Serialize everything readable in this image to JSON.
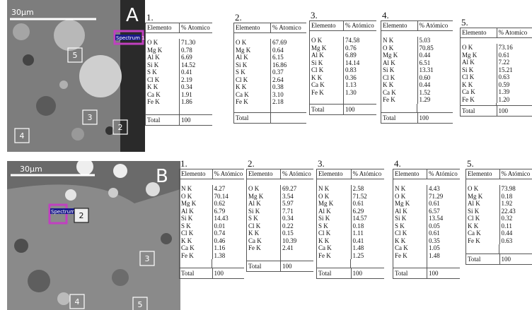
{
  "panels": [
    {
      "image": {
        "scale": "30μm",
        "letter": "A",
        "spectrum": "Spectrum 1",
        "markers": [
          "5",
          "3",
          "2",
          "4"
        ]
      },
      "tables": [
        {
          "number": "1.",
          "header": [
            "Elemento",
            "% Atomico"
          ],
          "rows": [
            [
              "O K",
              "71.30"
            ],
            [
              "Mg K",
              "0.78"
            ],
            [
              "Al K",
              "6.69"
            ],
            [
              "Si K",
              "14.52"
            ],
            [
              "S K",
              "0.41"
            ],
            [
              "Cl K",
              "2.19"
            ],
            [
              "K K",
              "0.34"
            ],
            [
              "Ca K",
              "1.91"
            ],
            [
              "Fe K",
              "1.86"
            ]
          ],
          "total": [
            "Total",
            "100"
          ]
        },
        {
          "number": "2.",
          "header": [
            "Elemento",
            "% Atomico"
          ],
          "rows": [
            [
              "O K",
              "67.69"
            ],
            [
              "Mg K",
              "0.64"
            ],
            [
              "Al K",
              "6.15"
            ],
            [
              "Si K",
              "16.86"
            ],
            [
              "S K",
              "0.37"
            ],
            [
              "Cl K",
              "2.64"
            ],
            [
              "K K",
              "0.38"
            ],
            [
              "Ca K",
              "3.10"
            ],
            [
              "Fe K",
              "2.18"
            ]
          ],
          "total": [
            "Total"
          ]
        },
        {
          "number": "3.",
          "header": [
            "Elemento",
            "% Atómico"
          ],
          "rows": [
            [
              "O K",
              "74.58"
            ],
            [
              "Mg K",
              "0.76"
            ],
            [
              "Al K",
              "6.89"
            ],
            [
              "Si K",
              "14.14"
            ],
            [
              "Cl K",
              "0.83"
            ],
            [
              "K K",
              "0.36"
            ],
            [
              "Ca K",
              "1.13"
            ],
            [
              "Fe K",
              "1.30"
            ]
          ],
          "total": [
            "Total",
            "100"
          ]
        },
        {
          "number": "4.",
          "header": [
            "Elemento",
            "% Atómico"
          ],
          "rows": [
            [
              "N K",
              "5.03"
            ],
            [
              "O K",
              "70.85"
            ],
            [
              "Mg K",
              "0.44"
            ],
            [
              "Al K",
              "6.51"
            ],
            [
              "Si K",
              "13.31"
            ],
            [
              "Cl K",
              "0.60"
            ],
            [
              "K K",
              "0.44"
            ],
            [
              "Ca K",
              "1.52"
            ],
            [
              "Fe K",
              "1.29"
            ]
          ],
          "total": [
            "Total",
            "100"
          ]
        },
        {
          "number": "5.",
          "header": [
            "Elemento",
            "% Atomico"
          ],
          "rows": [
            [
              "O K",
              "73.16"
            ],
            [
              "Mg K",
              "0.61"
            ],
            [
              "Al K",
              "7.22"
            ],
            [
              "Si K",
              "15.21"
            ],
            [
              "Cl K",
              "0.63"
            ],
            [
              "K K",
              "0.59"
            ],
            [
              "Ca K",
              "1.39"
            ],
            [
              "Fe K",
              "1.20"
            ]
          ],
          "total": [
            "Total",
            "100"
          ]
        }
      ]
    },
    {
      "image": {
        "scale": "30μm",
        "letter": "B",
        "spectrum": "Spectrum 1",
        "markers": [
          "2",
          "3",
          "4",
          "5"
        ]
      },
      "tables": [
        {
          "number": "1.",
          "header": [
            "Elemento",
            "% Atómico"
          ],
          "rows": [
            [
              "N K",
              "4.27"
            ],
            [
              "O K",
              "70.14"
            ],
            [
              "Mg K",
              "0.62"
            ],
            [
              "Al K",
              "6.79"
            ],
            [
              "Si K",
              "14.43"
            ],
            [
              "S K",
              "0.01"
            ],
            [
              "Cl K",
              "0.74"
            ],
            [
              "K K",
              "0.46"
            ],
            [
              "Ca K",
              "1.16"
            ],
            [
              "Fe K",
              "1.38"
            ]
          ],
          "total": [
            "Total",
            "100"
          ]
        },
        {
          "number": "2.",
          "header": [
            "Elemento",
            "% Atómico"
          ],
          "rows": [
            [
              "O K",
              "69.27"
            ],
            [
              "Mg K",
              "3.54"
            ],
            [
              "Al K",
              "5.97"
            ],
            [
              "Si K",
              "7.71"
            ],
            [
              "S K",
              "0.34"
            ],
            [
              "Cl K",
              "0.22"
            ],
            [
              "K K",
              "0.15"
            ],
            [
              "Ca K",
              "10.39"
            ],
            [
              "Fe K",
              "2.41"
            ]
          ],
          "total": [
            "Total",
            "100"
          ]
        },
        {
          "number": "3.",
          "header": [
            "Elemento",
            "% Atómico"
          ],
          "rows": [
            [
              "N K",
              "2.58"
            ],
            [
              "O K",
              "71.52"
            ],
            [
              "Mg K",
              "0.61"
            ],
            [
              "Al K",
              "6.29"
            ],
            [
              "Si K",
              "14.57"
            ],
            [
              "S K",
              "0.18"
            ],
            [
              "Cl K",
              "1.11"
            ],
            [
              "K K",
              "0.41"
            ],
            [
              "Ca K",
              "1.48"
            ],
            [
              "Fe K",
              "1.25"
            ]
          ],
          "total": [
            "Total",
            "100"
          ]
        },
        {
          "number": "4.",
          "header": [
            "Elemento",
            "% Atómico"
          ],
          "rows": [
            [
              "N K",
              "4.43"
            ],
            [
              "O K",
              "71.29"
            ],
            [
              "Mg K",
              "0.61"
            ],
            [
              "Al K",
              "6.57"
            ],
            [
              "Si K",
              "13.54"
            ],
            [
              "S K",
              "0.05"
            ],
            [
              "Cl K",
              "0.61"
            ],
            [
              "K K",
              "0.35"
            ],
            [
              "Ca K",
              "1.05"
            ],
            [
              "Fe K",
              "1.48"
            ]
          ],
          "total": [
            "Total",
            "100"
          ]
        },
        {
          "number": "5.",
          "header": [
            "Elemento",
            "% Atómico"
          ],
          "rows": [
            [
              "O K",
              "73.98"
            ],
            [
              "Mg K",
              "0.18"
            ],
            [
              "Al K",
              "1.92"
            ],
            [
              "Si K",
              "22.43"
            ],
            [
              "Cl K",
              "0.32"
            ],
            [
              "K K",
              "0.11"
            ],
            [
              "Ca K",
              "0.44"
            ],
            [
              "Fe K",
              "0.63"
            ]
          ],
          "total": [
            "Total",
            "100"
          ]
        }
      ]
    }
  ]
}
